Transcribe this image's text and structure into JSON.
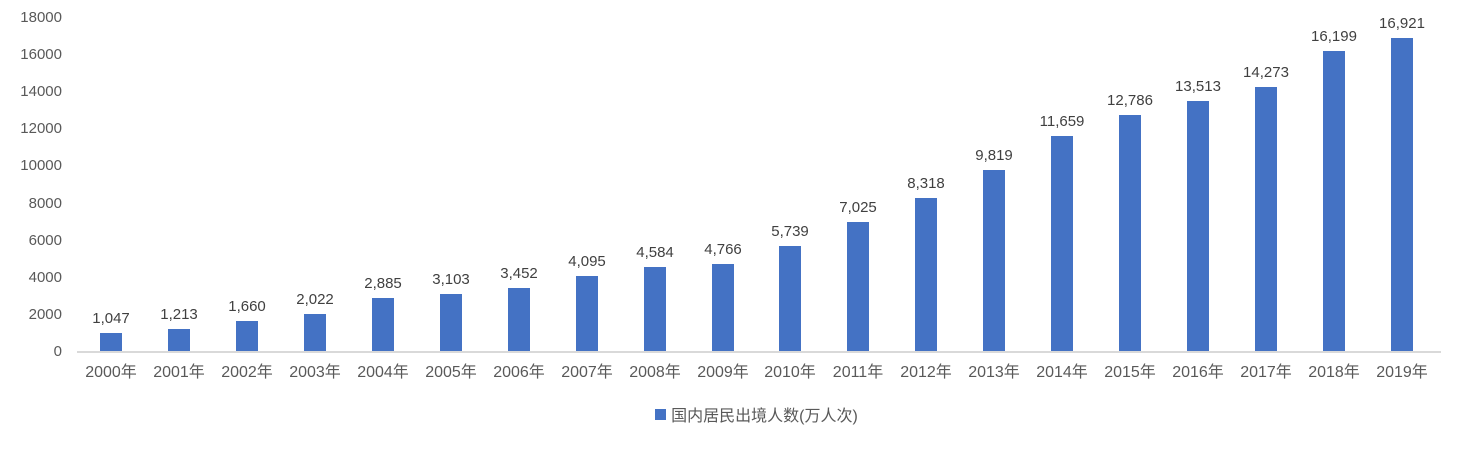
{
  "chart_data": {
    "type": "bar",
    "categories": [
      "2000年",
      "2001年",
      "2002年",
      "2003年",
      "2004年",
      "2005年",
      "2006年",
      "2007年",
      "2008年",
      "2009年",
      "2010年",
      "2011年",
      "2012年",
      "2013年",
      "2014年",
      "2015年",
      "2016年",
      "2017年",
      "2018年",
      "2019年"
    ],
    "values": [
      1047,
      1213,
      1660,
      2022,
      2885,
      3103,
      3452,
      4095,
      4584,
      4766,
      5739,
      7025,
      8318,
      9819,
      11659,
      12786,
      13513,
      14273,
      16199,
      16921
    ],
    "value_labels": [
      "1,047",
      "1,213",
      "1,660",
      "2,022",
      "2,885",
      "3,103",
      "3,452",
      "4,095",
      "4,584",
      "4,766",
      "5,739",
      "7,025",
      "8,318",
      "9,819",
      "11,659",
      "12,786",
      "13,513",
      "14,273",
      "16,199",
      "16,921"
    ],
    "series_name": "国内居民出境人数(万人次)",
    "ylim": [
      0,
      18000
    ],
    "yticks": [
      0,
      2000,
      4000,
      6000,
      8000,
      10000,
      12000,
      14000,
      16000,
      18000
    ],
    "grid": false,
    "legend_position": "bottom",
    "value_labels_shown": true,
    "colors": {
      "bar": "#4472c4",
      "value_label": "#404040",
      "axis_label": "#595959",
      "axis_line": "#d9d9d9"
    }
  }
}
